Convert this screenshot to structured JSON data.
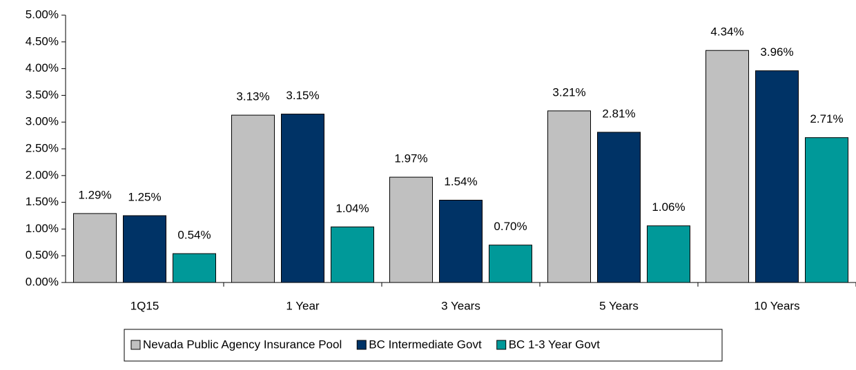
{
  "chart_data": {
    "type": "bar",
    "categories": [
      "1Q15",
      "1 Year",
      "3 Years",
      "5 Years",
      "10 Years"
    ],
    "series": [
      {
        "name": "Nevada Public Agency Insurance Pool",
        "color": "#c0c0c0",
        "values": [
          1.29,
          3.13,
          1.97,
          3.21,
          4.34
        ],
        "value_labels": [
          "1.29%",
          "3.13%",
          "1.97%",
          "3.21%",
          "4.34%"
        ]
      },
      {
        "name": "BC Intermediate Govt",
        "color": "#003366",
        "values": [
          1.25,
          3.15,
          1.54,
          2.81,
          3.96
        ],
        "value_labels": [
          "1.25%",
          "3.15%",
          "1.54%",
          "2.81%",
          "3.96%"
        ]
      },
      {
        "name": "BC 1-3 Year Govt",
        "color": "#009999",
        "values": [
          0.54,
          1.04,
          0.7,
          1.06,
          2.71
        ],
        "value_labels": [
          "0.54%",
          "1.04%",
          "0.70%",
          "1.06%",
          "2.71%"
        ]
      }
    ],
    "ylim": [
      0,
      5
    ],
    "yticks": [
      {
        "value": 0,
        "label": "0.00%"
      },
      {
        "value": 0.5,
        "label": "0.50%"
      },
      {
        "value": 1,
        "label": "1.00%"
      },
      {
        "value": 1.5,
        "label": "1.50%"
      },
      {
        "value": 2,
        "label": "2.00%"
      },
      {
        "value": 2.5,
        "label": "2.50%"
      },
      {
        "value": 3,
        "label": "3.00%"
      },
      {
        "value": 3.5,
        "label": "3.50%"
      },
      {
        "value": 4,
        "label": "4.00%"
      },
      {
        "value": 4.5,
        "label": "4.50%"
      },
      {
        "value": 5,
        "label": "5.00%"
      }
    ],
    "grid": false,
    "legend": "bottom"
  }
}
